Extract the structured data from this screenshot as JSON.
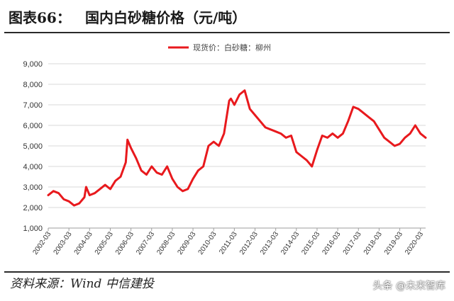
{
  "figure_label": "图表66：",
  "figure_title": "国内白砂糖价格（元/吨）",
  "source": "资料来源：Wind  中信建投",
  "watermark": "头条 @未来智库",
  "colors": {
    "series": "#e8191d",
    "grid": "#d9d9d9",
    "axis": "#9e9e9e"
  },
  "chart_data": {
    "type": "line",
    "legend_position": "top-center",
    "grid": true,
    "ylim": [
      1000,
      9000
    ],
    "yticks": [
      "1,000",
      "2,000",
      "3,000",
      "4,000",
      "5,000",
      "6,000",
      "7,000",
      "8,000",
      "9,000"
    ],
    "x_start": "2002-03",
    "x_end": "2020-06",
    "xticks": [
      "2002-03",
      "2003-03",
      "2004-03",
      "2005-03",
      "2006-03",
      "2007-03",
      "2008-03",
      "2009-03",
      "2010-03",
      "2011-03",
      "2012-03",
      "2013-03",
      "2014-03",
      "2015-03",
      "2016-03",
      "2017-03",
      "2018-03",
      "2019-03",
      "2020-03"
    ],
    "series": [
      {
        "name": "现货价：白砂糖：柳州",
        "x": [
          "2002-03",
          "2002-06",
          "2002-09",
          "2002-12",
          "2003-03",
          "2003-06",
          "2003-09",
          "2003-12",
          "2004-01",
          "2004-03",
          "2004-06",
          "2004-09",
          "2004-12",
          "2005-03",
          "2005-06",
          "2005-09",
          "2005-12",
          "2006-01",
          "2006-03",
          "2006-06",
          "2006-09",
          "2006-12",
          "2007-03",
          "2007-06",
          "2007-09",
          "2007-12",
          "2008-03",
          "2008-06",
          "2008-09",
          "2008-12",
          "2009-03",
          "2009-06",
          "2009-09",
          "2009-12",
          "2010-03",
          "2010-06",
          "2010-09",
          "2010-12",
          "2011-01",
          "2011-03",
          "2011-06",
          "2011-09",
          "2011-12",
          "2012-03",
          "2012-06",
          "2012-09",
          "2012-12",
          "2013-03",
          "2013-06",
          "2013-09",
          "2013-12",
          "2014-03",
          "2014-06",
          "2014-09",
          "2014-12",
          "2015-03",
          "2015-06",
          "2015-09",
          "2015-12",
          "2016-03",
          "2016-06",
          "2016-09",
          "2016-12",
          "2017-03",
          "2017-06",
          "2017-09",
          "2017-12",
          "2018-03",
          "2018-06",
          "2018-09",
          "2018-12",
          "2019-03",
          "2019-06",
          "2019-09",
          "2019-12",
          "2020-03",
          "2020-06"
        ],
        "values": [
          2600,
          2800,
          2700,
          2400,
          2300,
          2100,
          2200,
          2500,
          3000,
          2600,
          2700,
          2900,
          3100,
          2900,
          3300,
          3500,
          4200,
          5300,
          4900,
          4400,
          3800,
          3600,
          4000,
          3700,
          3600,
          4000,
          3400,
          3000,
          2800,
          2900,
          3400,
          3800,
          4000,
          5000,
          5200,
          5000,
          5600,
          7200,
          7300,
          7000,
          7500,
          7700,
          6800,
          6500,
          6200,
          5900,
          5800,
          5700,
          5600,
          5400,
          5500,
          4700,
          4500,
          4300,
          4000,
          4800,
          5500,
          5400,
          5600,
          5400,
          5600,
          6200,
          6900,
          6800,
          6600,
          6400,
          6200,
          5800,
          5400,
          5200,
          5000,
          5100,
          5400,
          5600,
          6000,
          5600,
          5400
        ]
      }
    ]
  }
}
